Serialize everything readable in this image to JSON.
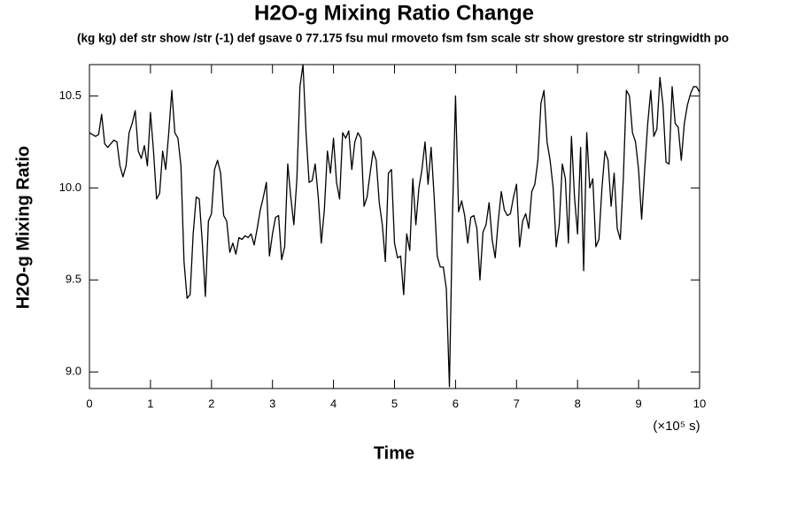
{
  "chart_data": {
    "type": "line",
    "title": "H2O-g Mixing Ratio Change",
    "subtitle": "(kg kg) def str show /str (-1) def gsave 0 77.175 fsu mul rmoveto fsm fsm scale str show grestore str stringwidth po",
    "x_label": "Time",
    "y_label": "H2O-g Mixing Ratio",
    "x_annotation": "(×10⁵ s)",
    "color": "#000000",
    "xlim": [
      0,
      10
    ],
    "ylim": [
      8.91,
      10.67
    ],
    "xticks": [
      0,
      1,
      2,
      3,
      4,
      5,
      6,
      7,
      8,
      9,
      10
    ],
    "yticks": [
      {
        "value": 9,
        "label": "9.0"
      },
      9.5,
      {
        "value": 10,
        "label": "10.0"
      },
      10.5
    ],
    "grid": false,
    "x": [
      0,
      0.05,
      0.1,
      0.15,
      0.2,
      0.25,
      0.3,
      0.35,
      0.4,
      0.45,
      0.5,
      0.55,
      0.6,
      0.65,
      0.7,
      0.75,
      0.8,
      0.85,
      0.9,
      0.95,
      1,
      1.05,
      1.1,
      1.15,
      1.2,
      1.25,
      1.3,
      1.35,
      1.4,
      1.45,
      1.5,
      1.55,
      1.6,
      1.65,
      1.7,
      1.75,
      1.8,
      1.85,
      1.9,
      1.95,
      2,
      2.05,
      2.1,
      2.15,
      2.2,
      2.25,
      2.3,
      2.35,
      2.4,
      2.45,
      2.5,
      2.55,
      2.6,
      2.65,
      2.7,
      2.75,
      2.8,
      2.85,
      2.9,
      2.95,
      3,
      3.05,
      3.1,
      3.15,
      3.2,
      3.25,
      3.3,
      3.35,
      3.4,
      3.45,
      3.5,
      3.55,
      3.6,
      3.65,
      3.7,
      3.75,
      3.8,
      3.85,
      3.9,
      3.95,
      4,
      4.05,
      4.1,
      4.15,
      4.2,
      4.25,
      4.3,
      4.35,
      4.4,
      4.45,
      4.5,
      4.55,
      4.6,
      4.65,
      4.7,
      4.75,
      4.8,
      4.85,
      4.9,
      4.95,
      5,
      5.05,
      5.1,
      5.15,
      5.2,
      5.25,
      5.3,
      5.35,
      5.4,
      5.45,
      5.5,
      5.55,
      5.6,
      5.65,
      5.7,
      5.75,
      5.8,
      5.85,
      5.9,
      5.95,
      6,
      6.05,
      6.1,
      6.15,
      6.2,
      6.25,
      6.3,
      6.35,
      6.4,
      6.45,
      6.5,
      6.55,
      6.6,
      6.65,
      6.7,
      6.75,
      6.8,
      6.85,
      6.9,
      6.95,
      7,
      7.05,
      7.1,
      7.15,
      7.2,
      7.25,
      7.3,
      7.35,
      7.4,
      7.45,
      7.5,
      7.55,
      7.6,
      7.65,
      7.7,
      7.75,
      7.8,
      7.85,
      7.9,
      7.95,
      8,
      8.05,
      8.1,
      8.15,
      8.2,
      8.25,
      8.3,
      8.35,
      8.4,
      8.45,
      8.5,
      8.55,
      8.6,
      8.65,
      8.7,
      8.75,
      8.8,
      8.85,
      8.9,
      8.95,
      9,
      9.05,
      9.1,
      9.15,
      9.2,
      9.25,
      9.3,
      9.35,
      9.4,
      9.45,
      9.5,
      9.55,
      9.6,
      9.65,
      9.7,
      9.75,
      9.8,
      9.85,
      9.9,
      9.95,
      10
    ],
    "values": [
      10.3,
      10.29,
      10.28,
      10.29,
      10.4,
      10.24,
      10.22,
      10.24,
      10.26,
      10.25,
      10.12,
      10.06,
      10.12,
      10.3,
      10.35,
      10.42,
      10.2,
      10.16,
      10.23,
      10.12,
      10.41,
      10.2,
      9.94,
      9.97,
      10.2,
      10.1,
      10.3,
      10.53,
      10.3,
      10.27,
      10.12,
      9.6,
      9.4,
      9.42,
      9.75,
      9.95,
      9.94,
      9.7,
      9.41,
      9.82,
      9.86,
      10.1,
      10.15,
      10.08,
      9.85,
      9.82,
      9.65,
      9.7,
      9.64,
      9.73,
      9.72,
      9.74,
      9.73,
      9.75,
      9.69,
      9.78,
      9.88,
      9.95,
      10.03,
      9.63,
      9.75,
      9.84,
      9.85,
      9.61,
      9.68,
      10.13,
      9.95,
      9.8,
      10.05,
      10.55,
      10.67,
      10.3,
      10.03,
      10.04,
      10.13,
      9.95,
      9.7,
      9.88,
      10.2,
      10.08,
      10.27,
      10.03,
      9.94,
      10.3,
      10.27,
      10.31,
      10.1,
      10.25,
      10.3,
      10.27,
      9.9,
      9.95,
      10.08,
      10.2,
      10.15,
      9.92,
      9.8,
      9.6,
      10.08,
      10.1,
      9.7,
      9.62,
      9.63,
      9.42,
      9.75,
      9.66,
      10.05,
      9.8,
      10.0,
      10.1,
      10.25,
      10.02,
      10.22,
      9.95,
      9.63,
      9.57,
      9.57,
      9.45,
      8.92,
      9.85,
      10.5,
      9.87,
      9.93,
      9.85,
      9.7,
      9.84,
      9.85,
      9.78,
      9.5,
      9.76,
      9.8,
      9.92,
      9.72,
      9.62,
      9.82,
      9.98,
      9.88,
      9.85,
      9.86,
      9.95,
      10.02,
      9.68,
      9.82,
      9.86,
      9.78,
      9.98,
      10.02,
      10.15,
      10.46,
      10.53,
      10.25,
      10.15,
      10.0,
      9.68,
      9.8,
      10.13,
      10.05,
      9.7,
      10.28,
      9.95,
      9.75,
      10.22,
      9.55,
      10.3,
      10.0,
      10.05,
      9.68,
      9.72,
      10.0,
      10.2,
      10.15,
      9.9,
      10.08,
      9.78,
      9.72,
      10.05,
      10.53,
      10.5,
      10.3,
      10.25,
      10.1,
      9.83,
      10.1,
      10.35,
      10.53,
      10.28,
      10.32,
      10.6,
      10.45,
      10.14,
      10.13,
      10.55,
      10.35,
      10.33,
      10.15,
      10.35,
      10.45,
      10.51,
      10.55,
      10.55,
      10.52
    ]
  }
}
